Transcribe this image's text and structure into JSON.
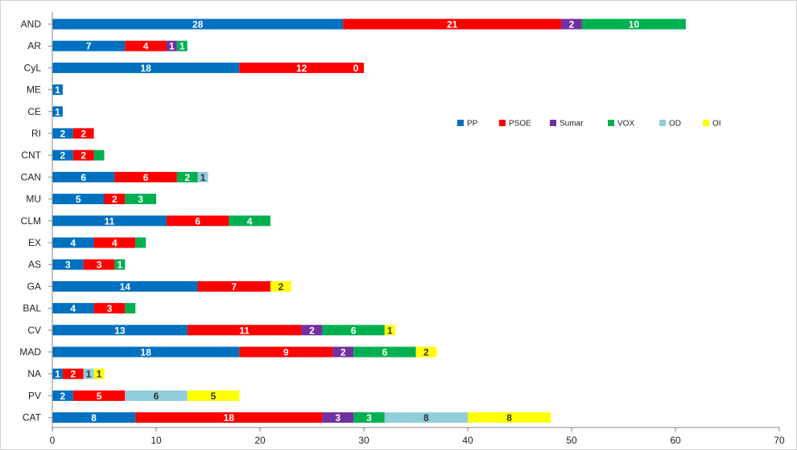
{
  "chart_data": {
    "type": "bar",
    "orientation": "horizontal",
    "stacked": true,
    "categories": [
      "AND",
      "AR",
      "CyL",
      "ME",
      "CE",
      "RI",
      "CNT",
      "CAN",
      "MU",
      "CLM",
      "EX",
      "AS",
      "GA",
      "BAL",
      "CV",
      "MAD",
      "NA",
      "PV",
      "CAT"
    ],
    "series": [
      {
        "name": "PP",
        "color": "#0070C0",
        "values": [
          28,
          7,
          18,
          1,
          1,
          2,
          2,
          6,
          5,
          11,
          4,
          3,
          14,
          4,
          13,
          18,
          1,
          2,
          8
        ]
      },
      {
        "name": "PSOE",
        "color": "#FF0000",
        "values": [
          21,
          4,
          12,
          null,
          null,
          2,
          2,
          6,
          2,
          6,
          4,
          3,
          7,
          3,
          11,
          9,
          2,
          5,
          18
        ]
      },
      {
        "name": "Sumar",
        "color": "#7030A0",
        "values": [
          2,
          1,
          null,
          null,
          null,
          null,
          null,
          null,
          null,
          null,
          null,
          null,
          null,
          null,
          2,
          2,
          null,
          null,
          3
        ]
      },
      {
        "name": "VOX",
        "color": "#00B050",
        "values": [
          10,
          1,
          0,
          null,
          null,
          null,
          1,
          2,
          3,
          4,
          1,
          1,
          null,
          1,
          6,
          6,
          null,
          null,
          3
        ]
      },
      {
        "name": "OD",
        "color": "#92CDDC",
        "values": [
          null,
          null,
          null,
          null,
          null,
          null,
          null,
          1,
          null,
          null,
          null,
          null,
          null,
          null,
          null,
          null,
          1,
          6,
          8
        ]
      },
      {
        "name": "OI",
        "color": "#FFFF00",
        "values": [
          null,
          null,
          null,
          null,
          null,
          null,
          null,
          null,
          null,
          null,
          null,
          null,
          2,
          null,
          1,
          2,
          1,
          5,
          8
        ]
      }
    ],
    "labels_hidden": [
      {
        "category": "CNT",
        "series": "VOX"
      },
      {
        "category": "EX",
        "series": "VOX"
      },
      {
        "category": "BAL",
        "series": "VOX"
      }
    ],
    "xlim": [
      0,
      70
    ],
    "xticks": [
      0,
      10,
      20,
      30,
      40,
      50,
      60,
      70
    ],
    "legend": "right-center"
  }
}
